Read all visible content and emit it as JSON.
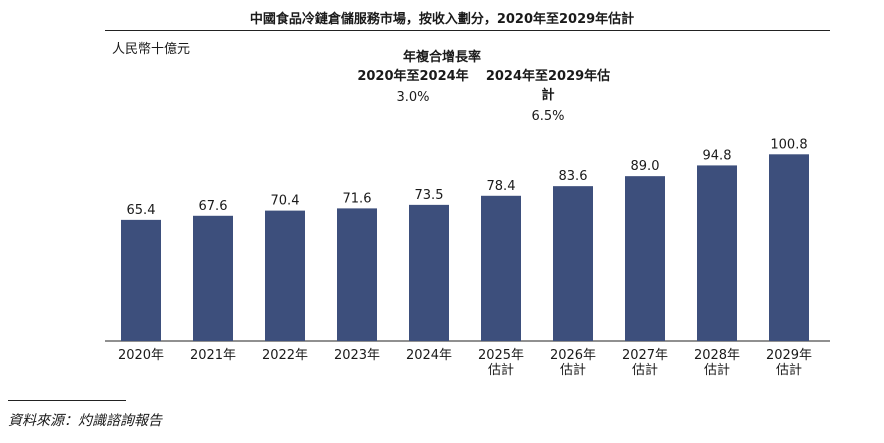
{
  "title": "中國食品冷鏈倉儲服務市場，按收入劃分，2020年至2029年估計",
  "unit": "人民幣十億元",
  "cagr": {
    "heading": "年複合增長率",
    "periods": [
      {
        "label": "2020年至2024年",
        "value": "3.0%"
      },
      {
        "label": "2024年至2029年估計",
        "value": "6.5%"
      }
    ]
  },
  "chart_data": {
    "type": "bar",
    "categories": [
      "2020年",
      "2021年",
      "2022年",
      "2023年",
      "2024年",
      "2025年\n估計",
      "2026年\n估計",
      "2027年\n估計",
      "2028年\n估計",
      "2029年\n估計"
    ],
    "values": [
      65.4,
      67.6,
      70.4,
      71.6,
      73.5,
      78.4,
      83.6,
      89.0,
      94.8,
      100.8
    ],
    "value_labels": [
      "65.4",
      "67.6",
      "70.4",
      "71.6",
      "73.5",
      "78.4",
      "83.6",
      "89.0",
      "94.8",
      "100.8"
    ],
    "title": "中國食品冷鏈倉儲服務市場，按收入劃分，2020年至2029年估計",
    "ylabel": "人民幣十億元",
    "ylim": [
      0,
      115
    ],
    "bar_color": "#3d4f7c",
    "grid": false
  },
  "source": "資料來源：灼識諮詢報告"
}
